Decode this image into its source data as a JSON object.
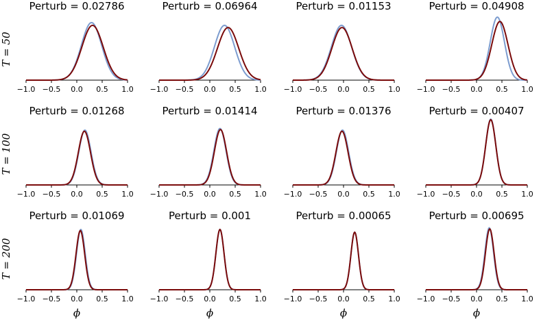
{
  "chart_data": {
    "type": "line",
    "rows": [
      "T = 50",
      "T = 100",
      "T = 200"
    ],
    "xlabel": "ϕ",
    "xlim": [
      -1.0,
      1.0
    ],
    "xticks": [
      "−1.0",
      "−0.5",
      "0.0",
      "0.5",
      "1.0"
    ],
    "series_colors": [
      "#7c9ccf",
      "#7a0a0a"
    ],
    "panels": [
      {
        "title": "Perturb = 0.02786",
        "a": {
          "mu": 0.29,
          "sigma": 0.2,
          "peak": 1.05
        },
        "b": {
          "mu": 0.31,
          "sigma": 0.21,
          "peak": 1.0
        }
      },
      {
        "title": "Perturb = 0.06964",
        "a": {
          "mu": 0.29,
          "sigma": 0.2,
          "peak": 1.0
        },
        "b": {
          "mu": 0.36,
          "sigma": 0.21,
          "peak": 0.96
        }
      },
      {
        "title": "Perturb = 0.01153",
        "a": {
          "mu": -0.04,
          "sigma": 0.2,
          "peak": 1.0
        },
        "b": {
          "mu": -0.03,
          "sigma": 0.2,
          "peak": 0.96
        }
      },
      {
        "title": "Perturb = 0.04908",
        "a": {
          "mu": 0.41,
          "sigma": 0.14,
          "peak": 1.15
        },
        "b": {
          "mu": 0.46,
          "sigma": 0.16,
          "peak": 1.07
        }
      },
      {
        "title": "Perturb = 0.01268",
        "a": {
          "mu": 0.16,
          "sigma": 0.12,
          "peak": 1.0
        },
        "b": {
          "mu": 0.15,
          "sigma": 0.12,
          "peak": 0.98
        }
      },
      {
        "title": "Perturb = 0.01414",
        "a": {
          "mu": 0.2,
          "sigma": 0.12,
          "peak": 1.03
        },
        "b": {
          "mu": 0.21,
          "sigma": 0.12,
          "peak": 1.01
        }
      },
      {
        "title": "Perturb = 0.01376",
        "a": {
          "mu": -0.02,
          "sigma": 0.12,
          "peak": 1.0
        },
        "b": {
          "mu": -0.03,
          "sigma": 0.12,
          "peak": 0.98
        }
      },
      {
        "title": "Perturb = 0.00407",
        "a": {
          "mu": 0.28,
          "sigma": 0.1,
          "peak": 1.2
        },
        "b": {
          "mu": 0.28,
          "sigma": 0.1,
          "peak": 1.19
        }
      },
      {
        "title": "Perturb = 0.01069",
        "a": {
          "mu": 0.08,
          "sigma": 0.085,
          "peak": 1.1
        },
        "b": {
          "mu": 0.07,
          "sigma": 0.085,
          "peak": 1.08
        }
      },
      {
        "title": "Perturb = 0.001",
        "a": {
          "mu": 0.2,
          "sigma": 0.08,
          "peak": 1.1
        },
        "b": {
          "mu": 0.2,
          "sigma": 0.08,
          "peak": 1.1
        }
      },
      {
        "title": "Perturb = 0.00065",
        "a": {
          "mu": 0.22,
          "sigma": 0.075,
          "peak": 1.05
        },
        "b": {
          "mu": 0.22,
          "sigma": 0.075,
          "peak": 1.05
        }
      },
      {
        "title": "Perturb = 0.00695",
        "a": {
          "mu": 0.25,
          "sigma": 0.085,
          "peak": 1.13
        },
        "b": {
          "mu": 0.26,
          "sigma": 0.085,
          "peak": 1.11
        }
      }
    ]
  }
}
